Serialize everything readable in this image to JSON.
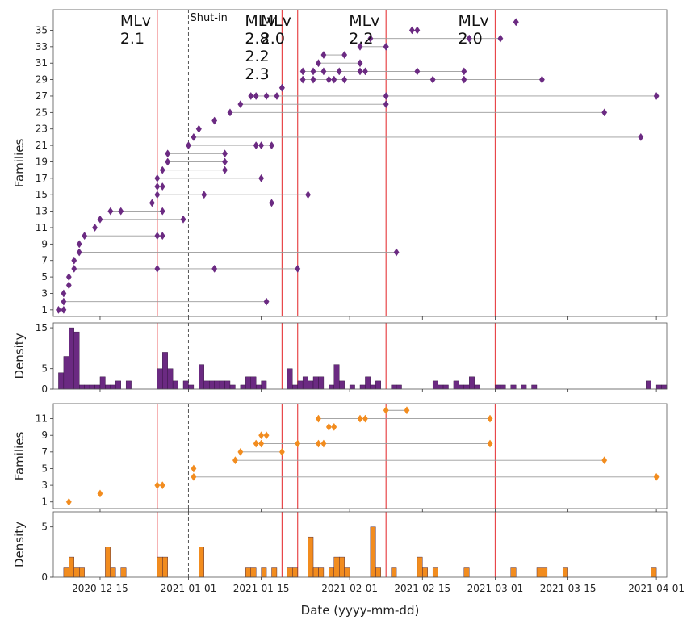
{
  "chart_data": {
    "type": "scatter",
    "x_axis": {
      "label": "Date (yyyy-mm-dd)",
      "ticks": [
        "2020-12-15",
        "2021-01-01",
        "2021-01-15",
        "2021-02-01",
        "2021-02-15",
        "2021-03-01",
        "2021-03-15",
        "2021-04-01"
      ],
      "range": [
        "2020-12-06",
        "2021-04-03"
      ]
    },
    "events": [
      {
        "date": "2020-12-26",
        "label_lines": [
          "MLv",
          "2.1"
        ],
        "style": "red-solid"
      },
      {
        "date": "2021-01-01",
        "label_lines": [
          "Shut-in"
        ],
        "style": "gray-dashed"
      },
      {
        "date": "2021-01-19",
        "label_lines": [
          "MLv",
          "2.8",
          "2.2",
          "2.3"
        ],
        "style": "red-solid"
      },
      {
        "date": "2021-01-22",
        "label_lines": [
          "MLv",
          "2.0"
        ],
        "style": "red-solid"
      },
      {
        "date": "2021-02-08",
        "label_lines": [
          "MLv",
          "2.2"
        ],
        "style": "red-solid"
      },
      {
        "date": "2021-03-01",
        "label_lines": [
          "MLv",
          "2.0"
        ],
        "style": "red-solid"
      }
    ],
    "panels": [
      {
        "id": "purple-families",
        "kind": "families",
        "ylabel": "Families",
        "yticks": [
          1,
          3,
          5,
          7,
          9,
          11,
          13,
          15,
          17,
          19,
          21,
          23,
          25,
          27,
          29,
          31,
          33,
          35
        ],
        "ylim": [
          0.2,
          37.5
        ],
        "color": "#6b2a82",
        "families": [
          {
            "family": 1,
            "dates": [
              "2020-12-07",
              "2020-12-08"
            ]
          },
          {
            "family": 2,
            "dates": [
              "2020-12-08",
              "2021-01-16"
            ]
          },
          {
            "family": 3,
            "dates": [
              "2020-12-08"
            ]
          },
          {
            "family": 4,
            "dates": [
              "2020-12-09"
            ]
          },
          {
            "family": 5,
            "dates": [
              "2020-12-09"
            ]
          },
          {
            "family": 6,
            "dates": [
              "2020-12-10",
              "2020-12-26",
              "2021-01-06",
              "2021-01-22"
            ]
          },
          {
            "family": 7,
            "dates": [
              "2020-12-10"
            ]
          },
          {
            "family": 8,
            "dates": [
              "2020-12-11",
              "2021-02-10"
            ]
          },
          {
            "family": 9,
            "dates": [
              "2020-12-11"
            ]
          },
          {
            "family": 10,
            "dates": [
              "2020-12-12",
              "2020-12-26",
              "2020-12-27"
            ]
          },
          {
            "family": 11,
            "dates": [
              "2020-12-14"
            ]
          },
          {
            "family": 12,
            "dates": [
              "2020-12-15",
              "2020-12-31"
            ]
          },
          {
            "family": 13,
            "dates": [
              "2020-12-17",
              "2020-12-19",
              "2020-12-27"
            ]
          },
          {
            "family": 14,
            "dates": [
              "2020-12-25",
              "2021-01-17"
            ]
          },
          {
            "family": 15,
            "dates": [
              "2020-12-26",
              "2021-01-04",
              "2021-01-24"
            ]
          },
          {
            "family": 16,
            "dates": [
              "2020-12-26",
              "2020-12-27"
            ]
          },
          {
            "family": 17,
            "dates": [
              "2020-12-26",
              "2021-01-15"
            ]
          },
          {
            "family": 18,
            "dates": [
              "2020-12-27",
              "2021-01-08"
            ]
          },
          {
            "family": 19,
            "dates": [
              "2020-12-28",
              "2021-01-08"
            ]
          },
          {
            "family": 20,
            "dates": [
              "2020-12-28",
              "2021-01-08"
            ]
          },
          {
            "family": 21,
            "dates": [
              "2021-01-01",
              "2021-01-14",
              "2021-01-15",
              "2021-01-17"
            ]
          },
          {
            "family": 22,
            "dates": [
              "2021-01-02",
              "2021-03-29"
            ]
          },
          {
            "family": 23,
            "dates": [
              "2021-01-03",
              "2021-01-03"
            ]
          },
          {
            "family": 24,
            "dates": [
              "2021-01-06"
            ]
          },
          {
            "family": 25,
            "dates": [
              "2021-01-09",
              "2021-03-22"
            ]
          },
          {
            "family": 26,
            "dates": [
              "2021-01-11",
              "2021-02-08"
            ]
          },
          {
            "family": 27,
            "dates": [
              "2021-01-13",
              "2021-01-14",
              "2021-01-16",
              "2021-01-18",
              "2021-02-08",
              "2021-04-01"
            ]
          },
          {
            "family": 28,
            "dates": [
              "2021-01-19",
              "2021-01-19"
            ]
          },
          {
            "family": 29,
            "dates": [
              "2021-01-23",
              "2021-01-25",
              "2021-01-28",
              "2021-01-29",
              "2021-01-31",
              "2021-02-17",
              "2021-02-23",
              "2021-03-10"
            ]
          },
          {
            "family": 30,
            "dates": [
              "2021-01-23",
              "2021-01-25",
              "2021-01-27",
              "2021-01-30",
              "2021-02-03",
              "2021-02-04",
              "2021-02-14",
              "2021-02-23"
            ]
          },
          {
            "family": 31,
            "dates": [
              "2021-01-26",
              "2021-02-03"
            ]
          },
          {
            "family": 32,
            "dates": [
              "2021-01-27",
              "2021-01-31"
            ]
          },
          {
            "family": 33,
            "dates": [
              "2021-02-03",
              "2021-02-08",
              "2021-02-08"
            ]
          },
          {
            "family": 34,
            "dates": [
              "2021-02-05",
              "2021-02-24",
              "2021-03-02"
            ]
          },
          {
            "family": 35,
            "dates": [
              "2021-02-13",
              "2021-02-14"
            ]
          },
          {
            "family": 36,
            "dates": [
              "2021-03-05",
              "2021-03-05"
            ]
          }
        ]
      },
      {
        "id": "purple-density",
        "kind": "density",
        "ylabel": "Density",
        "yticks": [
          0,
          5,
          15
        ],
        "ylim": [
          0,
          16.2
        ],
        "color": "#6b2a82",
        "bin_start": "2020-12-07",
        "values": [
          4,
          8,
          15,
          14,
          1,
          1,
          1,
          1,
          3,
          1,
          1,
          2,
          0,
          2,
          0,
          0,
          0,
          0,
          0,
          5,
          9,
          5,
          2,
          0,
          2,
          1,
          0,
          6,
          2,
          2,
          2,
          2,
          2,
          1,
          0,
          1,
          3,
          3,
          1,
          2,
          0,
          0,
          0,
          0,
          5,
          1,
          2,
          3,
          2,
          3,
          3,
          0,
          1,
          6,
          2,
          0,
          1,
          0,
          1,
          3,
          1,
          2,
          0,
          0,
          1,
          1,
          0,
          0,
          0,
          0,
          0,
          0,
          2,
          1,
          1,
          0,
          2,
          1,
          1,
          3,
          1,
          0,
          0,
          0,
          1,
          1,
          0,
          1,
          0,
          1,
          0,
          1,
          0,
          0,
          0,
          0,
          0,
          0,
          0,
          0,
          0,
          0,
          0,
          0,
          0,
          0,
          0,
          0,
          0,
          0,
          0,
          0,
          0,
          2,
          0,
          1,
          1
        ]
      },
      {
        "id": "orange-families",
        "kind": "families",
        "ylabel": "Families",
        "yticks": [
          1,
          3,
          5,
          7,
          9,
          11
        ],
        "ylim": [
          0.2,
          12.8
        ],
        "color": "#f28c1e",
        "families": [
          {
            "family": 1,
            "dates": [
              "2020-12-09"
            ]
          },
          {
            "family": 2,
            "dates": [
              "2020-12-15"
            ]
          },
          {
            "family": 3,
            "dates": [
              "2020-12-26",
              "2020-12-27"
            ]
          },
          {
            "family": 4,
            "dates": [
              "2021-01-02",
              "2021-04-01"
            ]
          },
          {
            "family": 5,
            "dates": [
              "2021-01-02"
            ]
          },
          {
            "family": 6,
            "dates": [
              "2021-01-10",
              "2021-03-22"
            ]
          },
          {
            "family": 7,
            "dates": [
              "2021-01-11",
              "2021-01-19"
            ]
          },
          {
            "family": 8,
            "dates": [
              "2021-01-14",
              "2021-01-15",
              "2021-01-22",
              "2021-01-26",
              "2021-01-27",
              "2021-02-28"
            ]
          },
          {
            "family": 9,
            "dates": [
              "2021-01-15",
              "2021-01-16"
            ]
          },
          {
            "family": 10,
            "dates": [
              "2021-01-28",
              "2021-01-29"
            ]
          },
          {
            "family": 11,
            "dates": [
              "2021-01-26",
              "2021-02-03",
              "2021-02-04",
              "2021-02-28"
            ]
          },
          {
            "family": 12,
            "dates": [
              "2021-02-08",
              "2021-02-12"
            ]
          }
        ]
      },
      {
        "id": "orange-density",
        "kind": "density",
        "ylabel": "Density",
        "yticks": [
          0,
          5
        ],
        "ylim": [
          0,
          6.5
        ],
        "color": "#f28c1e",
        "bin_start": "2020-12-07",
        "values": [
          0,
          1,
          2,
          1,
          1,
          0,
          0,
          0,
          0,
          3,
          1,
          0,
          1,
          0,
          0,
          0,
          0,
          0,
          0,
          2,
          2,
          0,
          0,
          0,
          0,
          0,
          0,
          3,
          0,
          0,
          0,
          0,
          0,
          0,
          0,
          0,
          1,
          1,
          0,
          1,
          0,
          1,
          0,
          0,
          1,
          1,
          0,
          0,
          4,
          1,
          1,
          0,
          1,
          2,
          2,
          1,
          0,
          0,
          0,
          0,
          5,
          1,
          0,
          0,
          1,
          0,
          0,
          0,
          0,
          2,
          1,
          0,
          1,
          0,
          0,
          0,
          0,
          0,
          1,
          0,
          0,
          0,
          0,
          0,
          0,
          0,
          0,
          1,
          0,
          0,
          0,
          0,
          1,
          1,
          0,
          0,
          0,
          1,
          0,
          0,
          0,
          0,
          0,
          0,
          0,
          0,
          0,
          0,
          0,
          0,
          0,
          0,
          0,
          0,
          1,
          0,
          0,
          0,
          0,
          0,
          0,
          0,
          0,
          0,
          0,
          0,
          0,
          0,
          0,
          0,
          0,
          1,
          0
        ]
      }
    ]
  }
}
